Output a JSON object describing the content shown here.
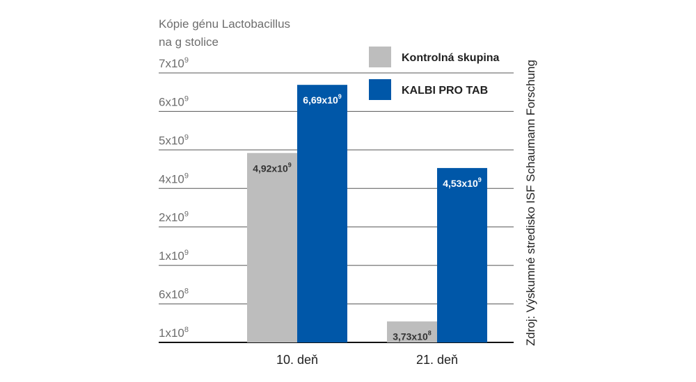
{
  "chart_data": {
    "type": "bar",
    "title": "",
    "ylabel_lines": [
      "Kópie génu Lactobacillus",
      "na g stolice"
    ],
    "xlabel": "",
    "categories": [
      "10. deň",
      "21. deň"
    ],
    "y_ticks": [
      {
        "base": "1x10",
        "exp": "8"
      },
      {
        "base": "6x10",
        "exp": "8"
      },
      {
        "base": "1x10",
        "exp": "9"
      },
      {
        "base": "2x10",
        "exp": "9"
      },
      {
        "base": "4x10",
        "exp": "9"
      },
      {
        "base": "5x10",
        "exp": "9"
      },
      {
        "base": "6x10",
        "exp": "9"
      },
      {
        "base": "7x10",
        "exp": "9"
      }
    ],
    "series": [
      {
        "name": "Kontrolná skupina",
        "color": "#bdbdbd",
        "values": [
          4920000000,
          373000000
        ],
        "labels": [
          {
            "base": "4,92x10",
            "exp": "9"
          },
          {
            "base": "3,73x10",
            "exp": "8"
          }
        ],
        "label_color": "#333333"
      },
      {
        "name": "KALBI PRO TAB",
        "color": "#0057a8",
        "values": [
          6690000000,
          4530000000
        ],
        "labels": [
          {
            "base": "6,69x10",
            "exp": "9"
          },
          {
            "base": "4,53x10",
            "exp": "9"
          }
        ],
        "label_color": "#ffffff"
      }
    ],
    "grid": true,
    "y_scale": "nonlinear (ticks evenly spaced)",
    "legend_position": "top-right",
    "source": "Zdroj: Výskumné stredisko ISF Schaumann Forschung"
  }
}
